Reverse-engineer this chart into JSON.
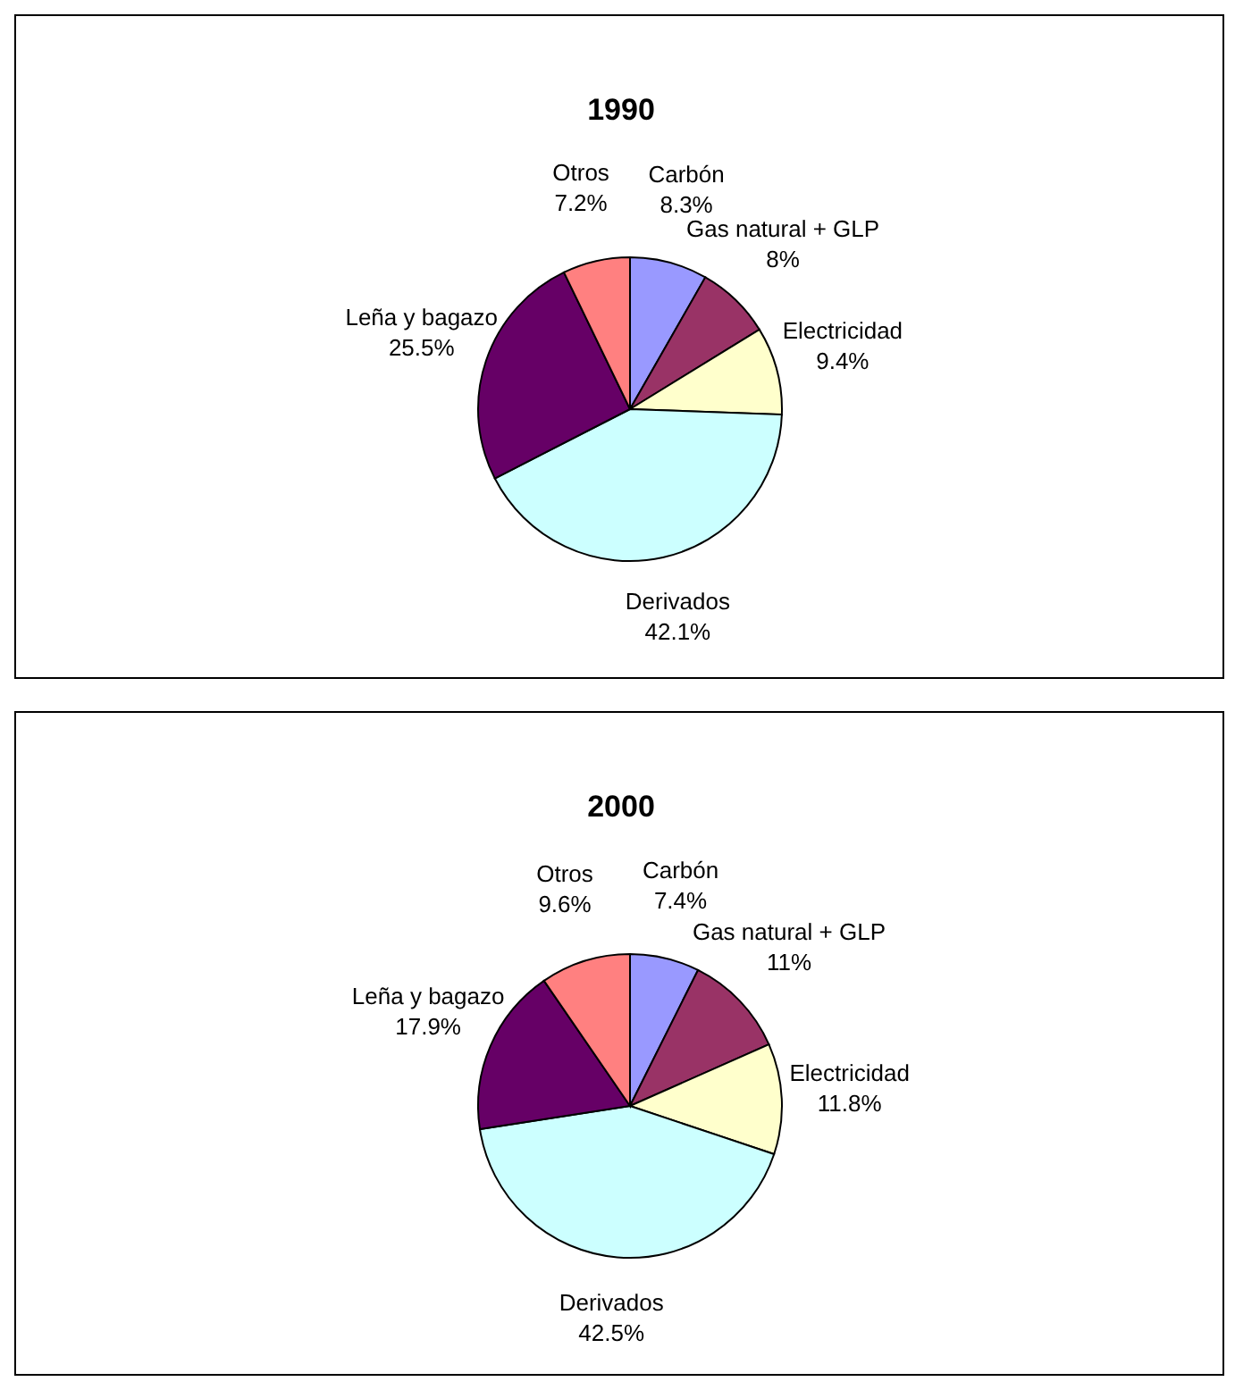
{
  "chart_data": [
    {
      "type": "pie",
      "title": "1990",
      "categories": [
        "Carbón",
        "Gas natural + GLP",
        "Electricidad",
        "Derivados",
        "Leña y bagazo",
        "Otros"
      ],
      "values": [
        8.3,
        8,
        9.4,
        42.1,
        25.5,
        7.2
      ],
      "value_labels": [
        "8.3%",
        "8%",
        "9.4%",
        "42.1%",
        "25.5%",
        "7.2%"
      ],
      "colors": [
        "#9999ff",
        "#993366",
        "#ffffcc",
        "#ccffff",
        "#660066",
        "#ff8080"
      ],
      "legend": false
    },
    {
      "type": "pie",
      "title": "2000",
      "categories": [
        "Carbón",
        "Gas natural + GLP",
        "Electricidad",
        "Derivados",
        "Leña y bagazo",
        "Otros"
      ],
      "values": [
        7.4,
        11,
        11.8,
        42.5,
        17.9,
        9.6
      ],
      "value_labels": [
        "7.4%",
        "11%",
        "11.8%",
        "42.5%",
        "17.9%",
        "9.6%"
      ],
      "colors": [
        "#9999ff",
        "#993366",
        "#ffffcc",
        "#ccffff",
        "#660066",
        "#ff8080"
      ],
      "legend": false
    }
  ]
}
